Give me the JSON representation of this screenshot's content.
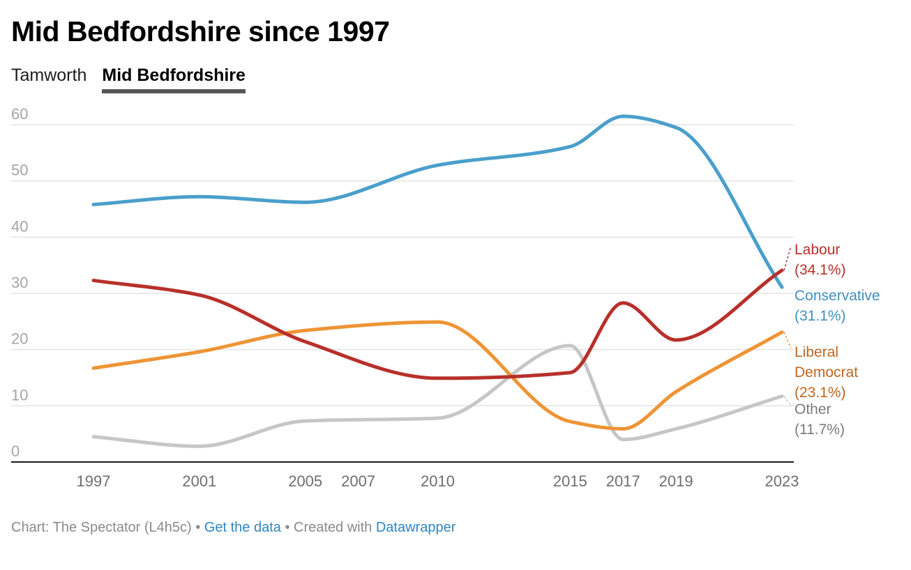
{
  "header": {
    "title": "Mid Bedfordshire since 1997",
    "tabs": [
      {
        "label": "Tamworth",
        "active": false
      },
      {
        "label": "Mid Bedfordshire",
        "active": true
      }
    ]
  },
  "footer": {
    "chart_credit": "Chart: The Spectator (L4h5c)",
    "separator": "•",
    "get_data_link": "Get the data",
    "created_with": "Created with",
    "datawrapper_link": "Datawrapper"
  },
  "chart_data": {
    "type": "line",
    "title": "Mid Bedfordshire since 1997",
    "xlabel": "",
    "ylabel": "",
    "x": [
      1997,
      2001,
      2005,
      2010,
      2015,
      2017,
      2019,
      2023
    ],
    "xticks": [
      1997,
      2001,
      2005,
      2007,
      2010,
      2015,
      2017,
      2019,
      2023
    ],
    "xlim": [
      1997,
      2023
    ],
    "yticks": [
      0,
      10,
      20,
      30,
      40,
      50,
      60
    ],
    "ylim": [
      0,
      60
    ],
    "grid": true,
    "legend": "direct labels at line ends (right)",
    "series": [
      {
        "name": "Conservative",
        "label": "Conservative",
        "end_label": "(31.1%)",
        "color": "#4a9fcb",
        "label_color": "#3f8fbd",
        "values": [
          45.8,
          47.2,
          46.2,
          52.8,
          56.1,
          61.5,
          59.5,
          31.1
        ]
      },
      {
        "name": "Labour",
        "label": "Labour",
        "end_label": "(34.1%)",
        "color": "#b8302b",
        "label_color": "#b8302b",
        "values": [
          32.3,
          29.7,
          21.4,
          14.9,
          15.9,
          28.3,
          21.7,
          34.1
        ]
      },
      {
        "name": "Liberal Democrat",
        "label": "Liberal Democrat",
        "end_label": "(23.1%)",
        "color": "#ee9435",
        "label_color": "#c0661e",
        "values": [
          16.7,
          19.6,
          23.4,
          24.9,
          7.2,
          5.9,
          12.5,
          23.1
        ]
      },
      {
        "name": "Other",
        "label": "Other",
        "end_label": "(11.7%)",
        "color": "#c6c6c6",
        "label_color": "#7a7a7a",
        "values": [
          4.5,
          2.8,
          7.3,
          7.8,
          20.7,
          4.0,
          5.9,
          11.7
        ]
      }
    ]
  }
}
